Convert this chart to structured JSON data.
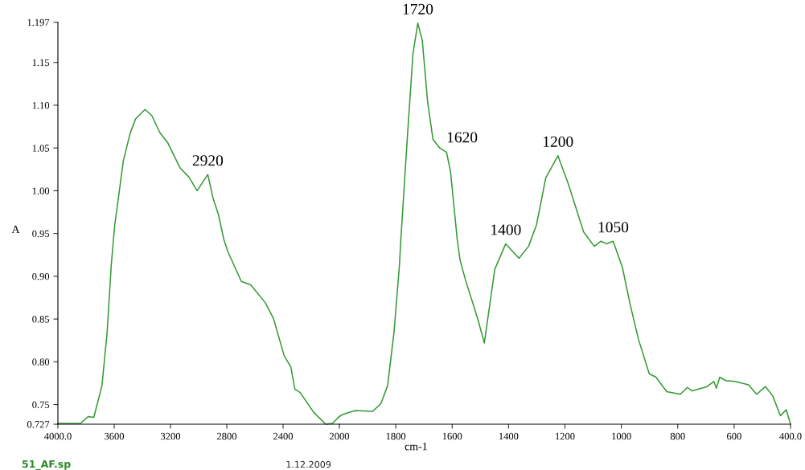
{
  "chart_data": [
    {
      "type": "line",
      "ylabel": "A",
      "series": [
        {
          "color": "#339933",
          "x": [
            4000,
            3840,
            3783,
            3745,
            3687,
            3650,
            3621,
            3596,
            3573,
            3535,
            3487,
            3448,
            3381,
            3333,
            3276,
            3219,
            3133,
            3069,
            3011,
            2935,
            2897,
            2859,
            2821,
            2793,
            2697,
            2630,
            2526,
            2469,
            2392,
            2345,
            2316,
            2278,
            2183,
            2097,
            2050,
            2000
          ],
          "values": [
            0.728,
            0.728,
            0.736,
            0.735,
            0.772,
            0.835,
            0.913,
            0.96,
            0.988,
            1.035,
            1.067,
            1.084,
            1.095,
            1.088,
            1.068,
            1.056,
            1.027,
            1.016,
            1.0,
            1.019,
            0.991,
            0.972,
            0.943,
            0.929,
            0.894,
            0.89,
            0.869,
            0.851,
            0.807,
            0.794,
            0.768,
            0.764,
            0.741,
            0.727,
            0.728,
            0.736
          ]
        }
      ],
      "xlim": [
        4000,
        2000
      ],
      "xticks": [
        {
          "value": 4000,
          "label": "4000.0"
        },
        3600,
        3200,
        2800,
        2400,
        2000
      ],
      "ylim": [
        0.727,
        1.197
      ],
      "yticks": [
        0.727,
        {
          "value": 0.75,
          "label": "0.75"
        },
        {
          "value": 0.8,
          "label": "0.80"
        },
        {
          "value": 0.85,
          "label": "0.85"
        },
        {
          "value": 0.9,
          "label": "0.90"
        },
        {
          "value": 0.95,
          "label": "0.95"
        },
        {
          "value": 1.0,
          "label": "1.00"
        },
        {
          "value": 1.05,
          "label": "1.05"
        },
        {
          "value": 1.1,
          "label": "1.10"
        },
        {
          "value": 1.15,
          "label": "1.15"
        },
        1.197
      ],
      "annotations": [
        {
          "text": "2920",
          "x": 2935,
          "y": 1.019
        },
        "51_AF.sp",
        "1.12.2009"
      ],
      "marker": "none",
      "line_style": "solid"
    },
    {
      "type": "line",
      "xlabel": "cm-1",
      "series": [
        {
          "color": "#339933",
          "x": [
            2000,
            1991,
            1944,
            1882,
            1853,
            1829,
            1806,
            1787,
            1782,
            1758,
            1739,
            1722,
            1706,
            1687,
            1668,
            1644,
            1620,
            1606,
            1582,
            1572,
            1553,
            1510,
            1486,
            1467,
            1449,
            1410,
            1363,
            1329,
            1301,
            1268,
            1225,
            1187,
            1134,
            1096,
            1072,
            1053,
            1029,
            996,
            968,
            939,
            901,
            877,
            839,
            791,
            766,
            749,
            696,
            672,
            663,
            651,
            630,
            596,
            549,
            520,
            489,
            463,
            436,
            415,
            400
          ],
          "values": [
            0.736,
            0.738,
            0.743,
            0.742,
            0.751,
            0.772,
            0.835,
            0.913,
            0.943,
            1.067,
            1.16,
            1.196,
            1.176,
            1.104,
            1.06,
            1.05,
            1.045,
            1.023,
            0.943,
            0.919,
            0.896,
            0.851,
            0.822,
            0.866,
            0.908,
            0.938,
            0.921,
            0.935,
            0.96,
            1.015,
            1.041,
            1.007,
            0.952,
            0.935,
            0.941,
            0.938,
            0.941,
            0.91,
            0.866,
            0.826,
            0.786,
            0.782,
            0.765,
            0.762,
            0.77,
            0.766,
            0.771,
            0.777,
            0.769,
            0.782,
            0.778,
            0.777,
            0.773,
            0.762,
            0.771,
            0.76,
            0.737,
            0.744,
            0.727
          ]
        }
      ],
      "xlim": [
        2000,
        400
      ],
      "xticks": [
        1800,
        1600,
        1400,
        1200,
        1000,
        800,
        600,
        {
          "value": 400,
          "label": "400.0"
        }
      ],
      "ylim": [
        0.727,
        1.197
      ],
      "tick_labels": "x",
      "annotations": [
        {
          "text": "1720",
          "x": 1722,
          "y": 1.196
        },
        {
          "text": "1620",
          "x": 1644,
          "y": 1.05
        },
        {
          "text": "1400",
          "x": 1410,
          "y": 0.938
        },
        {
          "text": "1200",
          "x": 1225,
          "y": 1.041
        },
        {
          "text": "1050",
          "x": 1029,
          "y": 0.941
        }
      ],
      "marker": "none",
      "line_style": "solid"
    }
  ]
}
